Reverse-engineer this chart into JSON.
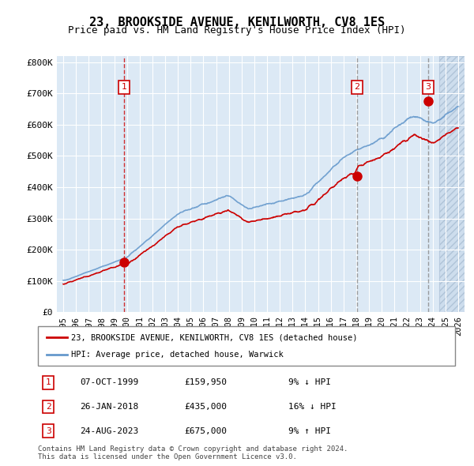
{
  "title": "23, BROOKSIDE AVENUE, KENILWORTH, CV8 1ES",
  "subtitle": "Price paid vs. HM Land Registry's House Price Index (HPI)",
  "title_fontsize": 12,
  "subtitle_fontsize": 10,
  "bg_color": "#dce9f5",
  "plot_bg_color": "#dce9f5",
  "hatch_color": "#b0c8e0",
  "red_line_color": "#cc0000",
  "blue_line_color": "#6699cc",
  "sale_marker_color": "#cc0000",
  "vline_red_color": "#cc0000",
  "vline_grey_color": "#888888",
  "ylim": [
    0,
    820000
  ],
  "yticks": [
    0,
    100000,
    200000,
    300000,
    400000,
    500000,
    600000,
    700000,
    800000
  ],
  "ytick_labels": [
    "£0",
    "£100K",
    "£200K",
    "£300K",
    "£400K",
    "£500K",
    "£600K",
    "£700K",
    "£800K"
  ],
  "xlim_start": 1994.5,
  "xlim_end": 2026.5,
  "hatch_start": 2024.5,
  "sale_dates": [
    1999.77,
    2018.07,
    2023.65
  ],
  "sale_prices": [
    159950,
    435000,
    675000
  ],
  "sale_labels": [
    "1",
    "2",
    "3"
  ],
  "table_rows": [
    [
      "1",
      "07-OCT-1999",
      "£159,950",
      "9% ↓ HPI"
    ],
    [
      "2",
      "26-JAN-2018",
      "£435,000",
      "16% ↓ HPI"
    ],
    [
      "3",
      "24-AUG-2023",
      "£675,000",
      "9% ↑ HPI"
    ]
  ],
  "legend_line1": "23, BROOKSIDE AVENUE, KENILWORTH, CV8 1ES (detached house)",
  "legend_line2": "HPI: Average price, detached house, Warwick",
  "footer": "Contains HM Land Registry data © Crown copyright and database right 2024.\nThis data is licensed under the Open Government Licence v3.0.",
  "xtick_years": [
    1995,
    1996,
    1997,
    1998,
    1999,
    2000,
    2001,
    2002,
    2003,
    2004,
    2005,
    2006,
    2007,
    2008,
    2009,
    2010,
    2011,
    2012,
    2013,
    2014,
    2015,
    2016,
    2017,
    2018,
    2019,
    2020,
    2021,
    2022,
    2023,
    2024,
    2025,
    2026
  ]
}
